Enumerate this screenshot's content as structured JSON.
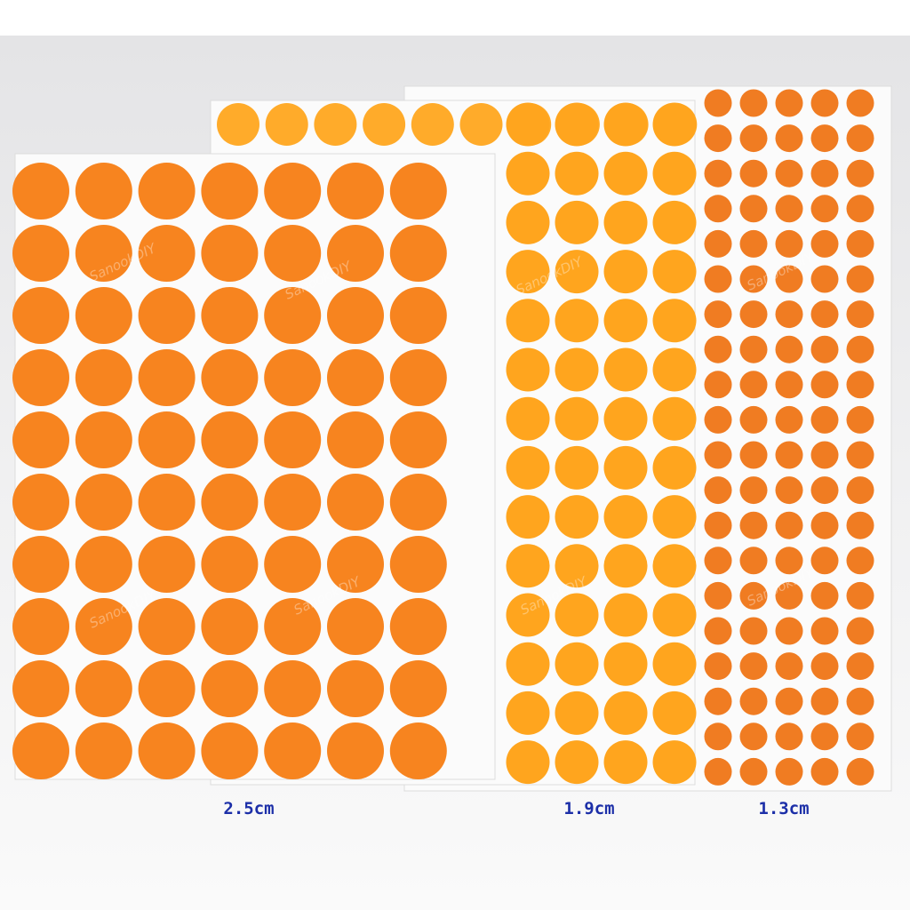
{
  "labels": [
    "2.5cm",
    "1.9cm",
    "1.3cm"
  ],
  "watermark": "SanookDIY"
}
